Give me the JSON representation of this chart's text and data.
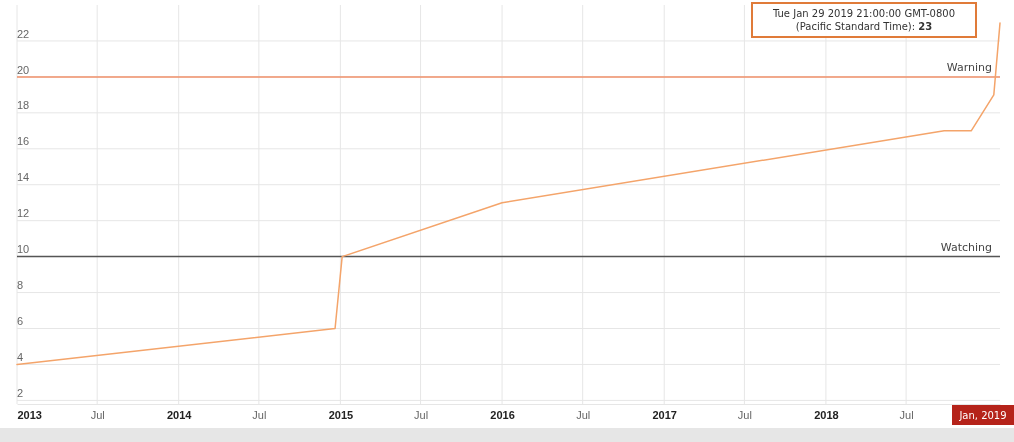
{
  "chart_data": {
    "type": "line",
    "x": [
      "2013-01-01",
      "2014-12-20",
      "2015-01-05",
      "2016-01-01",
      "2018-09-25",
      "2018-11-25",
      "2019-01-15",
      "2019-01-29"
    ],
    "series": [
      {
        "color": "#f4a46a",
        "values": [
          4,
          6,
          10,
          13,
          17,
          17,
          19,
          23
        ]
      }
    ],
    "xlim": [
      "2013-01-01",
      "2019-01-29"
    ],
    "ylim": [
      1.8,
      24
    ],
    "xticks": [
      {
        "value": "2013-01-01",
        "label": "2013"
      },
      {
        "value": "2013-07-01",
        "label": "Jul"
      },
      {
        "value": "2014-01-01",
        "label": "2014"
      },
      {
        "value": "2014-07-01",
        "label": "Jul"
      },
      {
        "value": "2015-01-01",
        "label": "2015"
      },
      {
        "value": "2015-07-01",
        "label": "Jul"
      },
      {
        "value": "2016-01-01",
        "label": "2016"
      },
      {
        "value": "2016-07-01",
        "label": "Jul"
      },
      {
        "value": "2017-01-01",
        "label": "2017"
      },
      {
        "value": "2017-07-01",
        "label": "Jul"
      },
      {
        "value": "2018-01-01",
        "label": "2018"
      },
      {
        "value": "2018-07-01",
        "label": "Jul"
      }
    ],
    "yticks": [
      2,
      4,
      6,
      8,
      10,
      12,
      14,
      16,
      18,
      20,
      22
    ],
    "grid": true,
    "marker": "none",
    "line_style": "solid",
    "ref_lines": [
      {
        "axis": "y",
        "value": 20,
        "label": "Warning",
        "color": "#f0906a"
      },
      {
        "axis": "y",
        "value": 10,
        "label": "Watching",
        "color": "#555555"
      }
    ],
    "annotations": [
      "Tue Jan 29 2019 21:00:00 GMT-0800 (Pacific Standard Time): 23",
      "Jan, 2019"
    ]
  }
}
